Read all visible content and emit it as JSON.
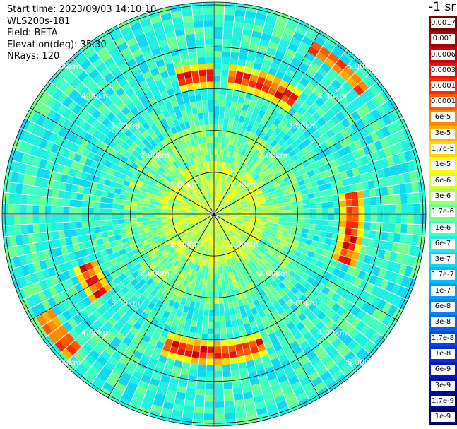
{
  "info": {
    "start_time": "Start time: 2023/09/03 14:10:10",
    "lidar": "WLS200s-181",
    "field": "Field: BETA",
    "elevation": "Elevation(deg): 35.30",
    "nrays": "NRays: 120"
  },
  "colorbar": {
    "unit": "-1 sr",
    "stops": [
      {
        "label": "0.0017",
        "color": "#7a0000"
      },
      {
        "label": "0.001",
        "color": "#a80000"
      },
      {
        "label": "0.0006",
        "color": "#cc0000"
      },
      {
        "label": "0.0003",
        "color": "#e81010"
      },
      {
        "label": "0.00017",
        "color": "#ff2a00"
      },
      {
        "label": "0.0001",
        "color": "#ff5a00"
      },
      {
        "label": "6e-5",
        "color": "#ff8a00"
      },
      {
        "label": "3e-5",
        "color": "#ffb000"
      },
      {
        "label": "1.7e-5",
        "color": "#ffd800"
      },
      {
        "label": "1e-5",
        "color": "#ffff00"
      },
      {
        "label": "6e-6",
        "color": "#d8ff30"
      },
      {
        "label": "3e-6",
        "color": "#a8ff60"
      },
      {
        "label": "1.7e-6",
        "color": "#70ff90"
      },
      {
        "label": "1e-6",
        "color": "#40ffc0"
      },
      {
        "label": "6e-7",
        "color": "#20f0e0"
      },
      {
        "label": "3e-7",
        "color": "#10d8f0"
      },
      {
        "label": "1.7e-7",
        "color": "#00bfff"
      },
      {
        "label": "1e-7",
        "color": "#00a0f8"
      },
      {
        "label": "6e-8",
        "color": "#0084f0"
      },
      {
        "label": "3e-8",
        "color": "#0066e8"
      },
      {
        "label": "1.7e-8",
        "color": "#0048e0"
      },
      {
        "label": "1e-8",
        "color": "#0030d8"
      },
      {
        "label": "6e-9",
        "color": "#0018c0"
      },
      {
        "label": "3e-9",
        "color": "#0008a0"
      },
      {
        "label": "1.7e-9",
        "color": "#000080"
      },
      {
        "label": "1e-9",
        "color": "#000060"
      }
    ]
  },
  "range_labels": [
    "1.00km",
    "2.00km",
    "3.00km",
    "4.00km",
    "5.00km"
  ],
  "scan": {
    "n_rays": 120,
    "max_range_km": 5.1,
    "rings": [
      {
        "range_km": 0.55,
        "level": 3
      },
      {
        "range_km": 0.85,
        "level": 3
      },
      {
        "range_km": 1.1,
        "level": 3
      },
      {
        "range_km": 1.6,
        "level": 4
      },
      {
        "range_km": 3.35,
        "level": 10
      },
      {
        "range_km": 3.85,
        "level": 6
      }
    ]
  }
}
